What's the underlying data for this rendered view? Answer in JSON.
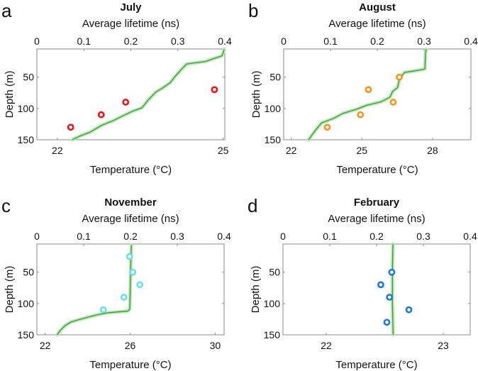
{
  "chart_data": [
    {
      "type": "line",
      "letter": "a",
      "title": "July",
      "top_xlabel": "Average lifetime (ns)",
      "bottom_xlabel": "Temperature (°C)",
      "ylabel": "Depth (m)",
      "ylim": [
        5,
        150
      ],
      "y_reversed": true,
      "yticks": [
        50,
        100,
        150
      ],
      "lifetime_lim": [
        0,
        0.4
      ],
      "lifetime_ticks": [
        "0",
        "0.1",
        "0.2",
        "0.3",
        "0.4"
      ],
      "temp_lim": [
        21.63,
        25.03
      ],
      "temp_ticks": [
        "22",
        "25"
      ],
      "marker_color": "#e8151b",
      "curve_color": "#2a9b2a",
      "temperature_profile": [
        [
          25.02,
          5.6
        ],
        [
          24.98,
          16
        ],
        [
          24.81,
          21
        ],
        [
          24.68,
          25
        ],
        [
          24.34,
          29
        ],
        [
          24.21,
          41
        ],
        [
          24.12,
          50
        ],
        [
          24.04,
          59
        ],
        [
          23.91,
          67
        ],
        [
          23.78,
          74
        ],
        [
          23.65,
          86
        ],
        [
          23.53,
          99
        ],
        [
          23.36,
          104.5
        ],
        [
          23.18,
          112
        ],
        [
          23.01,
          119.5
        ],
        [
          22.8,
          127
        ],
        [
          22.59,
          138
        ],
        [
          22.41,
          144
        ],
        [
          22.27,
          150
        ]
      ],
      "lifetime_points": [
        [
          0.072,
          130
        ],
        [
          0.137,
          110
        ],
        [
          0.189,
          90
        ],
        [
          0.378,
          70
        ]
      ]
    },
    {
      "type": "line",
      "letter": "b",
      "title": "August",
      "top_xlabel": "Average lifetime (ns)",
      "bottom_xlabel": "Temperature (°C)",
      "ylabel": "Depth (m)",
      "ylim": [
        5,
        150
      ],
      "y_reversed": true,
      "yticks": [
        50,
        100,
        150
      ],
      "lifetime_lim": [
        0,
        0.4
      ],
      "lifetime_ticks": [
        "0",
        "0.1",
        "0.2",
        "0.3",
        "0.4"
      ],
      "temp_lim": [
        21.68,
        29.63
      ],
      "temp_ticks": [
        "22",
        "25",
        "28"
      ],
      "marker_color": "#f7941d",
      "curve_color": "#2a9b2a",
      "temperature_profile": [
        [
          27.74,
          5.6
        ],
        [
          27.7,
          12
        ],
        [
          27.68,
          37
        ],
        [
          27.42,
          39
        ],
        [
          26.81,
          42.5
        ],
        [
          26.61,
          52
        ],
        [
          26.51,
          67
        ],
        [
          26.31,
          72.5
        ],
        [
          26.19,
          82
        ],
        [
          25.81,
          89.5
        ],
        [
          25.2,
          95
        ],
        [
          24.8,
          101
        ],
        [
          24.19,
          108
        ],
        [
          23.79,
          116
        ],
        [
          23.29,
          123
        ],
        [
          23.09,
          132
        ],
        [
          22.89,
          142
        ],
        [
          22.74,
          150
        ]
      ],
      "lifetime_points": [
        [
          0.093,
          130
        ],
        [
          0.164,
          110
        ],
        [
          0.181,
          70
        ],
        [
          0.234,
          90
        ],
        [
          0.247,
          50
        ]
      ]
    },
    {
      "type": "line",
      "letter": "c",
      "title": "November",
      "top_xlabel": "Average lifetime (ns)",
      "bottom_xlabel": "Temperature (°C)",
      "ylabel": "Depth (m)",
      "ylim": [
        5,
        150
      ],
      "y_reversed": true,
      "yticks": [
        50,
        100,
        150
      ],
      "lifetime_lim": [
        0,
        0.4
      ],
      "lifetime_ticks": [
        "0",
        "0.1",
        "0.2",
        "0.3",
        "0.4"
      ],
      "temp_lim": [
        21.61,
        30.42
      ],
      "temp_ticks": [
        "22",
        "26",
        "30"
      ],
      "marker_color": "#6ddcec",
      "curve_color": "#2a9b2a",
      "temperature_profile": [
        [
          26.06,
          6.5
        ],
        [
          26.03,
          36
        ],
        [
          26.0,
          81
        ],
        [
          25.98,
          109
        ],
        [
          25.89,
          112
        ],
        [
          24.89,
          115
        ],
        [
          24.44,
          118
        ],
        [
          24.0,
          122
        ],
        [
          23.56,
          126
        ],
        [
          23.22,
          129.5
        ],
        [
          22.94,
          135
        ],
        [
          22.72,
          142.6
        ],
        [
          22.56,
          150
        ]
      ],
      "lifetime_points": [
        [
          0.198,
          25
        ],
        [
          0.205,
          50
        ],
        [
          0.22,
          70
        ],
        [
          0.186,
          90
        ],
        [
          0.142,
          110
        ]
      ]
    },
    {
      "type": "line",
      "letter": "d",
      "title": "February",
      "top_xlabel": "Average lifetime (ns)",
      "bottom_xlabel": "Temperature (°C)",
      "ylabel": "Depth (m)",
      "ylim": [
        5,
        150
      ],
      "y_reversed": true,
      "yticks": [
        50,
        100,
        150
      ],
      "lifetime_lim": [
        0,
        0.4
      ],
      "lifetime_ticks": [
        "0",
        "0.1",
        "0.2",
        "0.3",
        "0.4"
      ],
      "temp_lim": [
        21.63,
        23.23
      ],
      "temp_ticks": [
        "22",
        "23"
      ],
      "marker_color": "#1f78d1",
      "curve_color": "#2a9b2a",
      "temperature_profile": [
        [
          22.57,
          5
        ],
        [
          22.566,
          40
        ],
        [
          22.565,
          100
        ],
        [
          22.572,
          150
        ]
      ],
      "lifetime_points": [
        [
          0.2325,
          50
        ],
        [
          0.209,
          70
        ],
        [
          0.2275,
          90
        ],
        [
          0.269,
          110
        ],
        [
          0.222,
          130
        ]
      ]
    }
  ]
}
